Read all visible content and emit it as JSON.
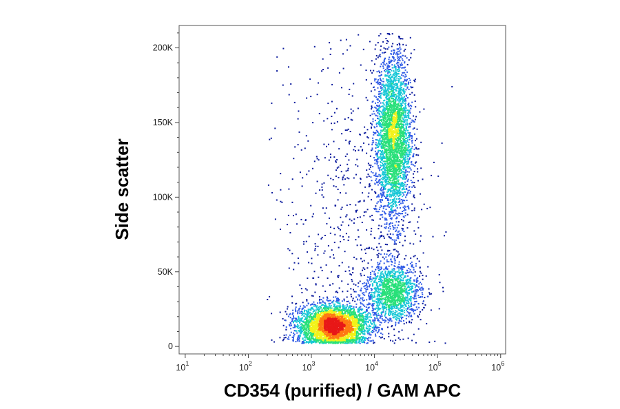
{
  "chart_data": {
    "type": "scatter",
    "subtype": "flow-cytometry density dot plot",
    "title": "",
    "xlabel": "CD354 (purified) / GAM APC",
    "ylabel": "Side scatter",
    "xscale": "log",
    "xlim": [
      8,
      1200000
    ],
    "ylim": [
      -5000,
      215000
    ],
    "x_ticks": [
      {
        "value": 10,
        "base": "10",
        "exp": "1"
      },
      {
        "value": 100,
        "base": "10",
        "exp": "2"
      },
      {
        "value": 1000,
        "base": "10",
        "exp": "3"
      },
      {
        "value": 10000,
        "base": "10",
        "exp": "4"
      },
      {
        "value": 100000,
        "base": "10",
        "exp": "5"
      },
      {
        "value": 1000000,
        "base": "10",
        "exp": "6"
      }
    ],
    "y_ticks": [
      {
        "value": 0,
        "label": "0"
      },
      {
        "value": 50000,
        "label": "50K"
      },
      {
        "value": 100000,
        "label": "100K"
      },
      {
        "value": 150000,
        "label": "150K"
      },
      {
        "value": 200000,
        "label": "200K"
      }
    ],
    "grid": false,
    "legend": "none",
    "colormap": [
      "#0a1a9c",
      "#2f5ae6",
      "#17c7d6",
      "#29e07a",
      "#f2f21a",
      "#ff7a12",
      "#e81818"
    ],
    "populations": [
      {
        "center_x": 2200,
        "center_y": 14000,
        "spread_log10_x": 0.28,
        "spread_y": 7000,
        "relative_size": 0.4
      },
      {
        "center_x": 20000,
        "center_y": 140000,
        "spread_log10_x": 0.14,
        "spread_y": 28000,
        "relative_size": 0.36
      },
      {
        "center_x": 20000,
        "center_y": 36000,
        "spread_log10_x": 0.22,
        "spread_y": 10000,
        "relative_size": 0.16
      },
      {
        "center_x": 5000,
        "center_y": 90000,
        "spread_log10_x": 0.55,
        "spread_y": 65000,
        "relative_size": 0.08
      }
    ]
  }
}
